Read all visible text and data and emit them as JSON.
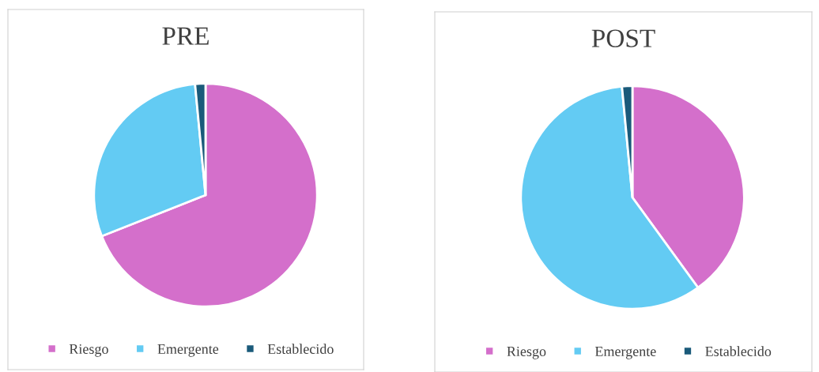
{
  "chart_data": [
    {
      "type": "pie",
      "title": "PRE",
      "categories": [
        "Riesgo",
        "Emergente",
        "Establecido"
      ],
      "values": [
        69,
        29.5,
        1.5
      ],
      "colors": [
        "#d46fcb",
        "#63cbf3",
        "#1a5a7a"
      ],
      "legend": "bottom"
    },
    {
      "type": "pie",
      "title": "POST",
      "categories": [
        "Riesgo",
        "Emergente",
        "Establecido"
      ],
      "values": [
        40,
        58.5,
        1.5
      ],
      "colors": [
        "#d46fcb",
        "#63cbf3",
        "#1a5a7a"
      ],
      "legend": "bottom"
    }
  ]
}
